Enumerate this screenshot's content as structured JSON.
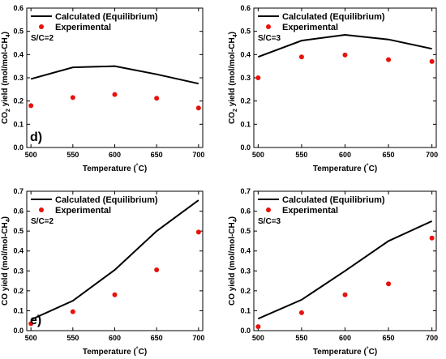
{
  "chart_data": [
    {
      "type": "line",
      "panel_letter": "d)",
      "annotation": "S/C=2",
      "xlabel": "Temperature (°C)",
      "ylabel": "CO2 yield (mol/mol-CH4)",
      "xlim": [
        495,
        705
      ],
      "ylim": [
        0,
        0.6
      ],
      "xticks": [
        "500",
        "550",
        "600",
        "650",
        "700"
      ],
      "yticks": [
        "0.0",
        "0.1",
        "0.2",
        "0.3",
        "0.4",
        "0.5",
        "0.6"
      ],
      "x": [
        500,
        550,
        600,
        650,
        700
      ],
      "series": [
        {
          "name": "Calculated (Equilibrium)",
          "style": "line",
          "color": "#000000",
          "values": [
            0.295,
            0.345,
            0.35,
            0.315,
            0.275
          ]
        },
        {
          "name": "Experimental",
          "style": "dot",
          "color": "#e8120c",
          "values": [
            0.18,
            0.215,
            0.228,
            0.212,
            0.17
          ]
        }
      ],
      "legend_position": "top-left"
    },
    {
      "type": "line",
      "panel_letter": "",
      "annotation": "S/C=3",
      "xlabel": "Temperature (°C)",
      "ylabel": "CO2 yield (mol/mol-CH4)",
      "xlim": [
        495,
        705
      ],
      "ylim": [
        0,
        0.6
      ],
      "xticks": [
        "500",
        "550",
        "600",
        "650",
        "700"
      ],
      "yticks": [
        "0.0",
        "0.1",
        "0.2",
        "0.3",
        "0.4",
        "0.5",
        "0.6"
      ],
      "x": [
        500,
        550,
        600,
        650,
        700
      ],
      "series": [
        {
          "name": "Calculated (Equilibrium)",
          "style": "line",
          "color": "#000000",
          "values": [
            0.39,
            0.46,
            0.485,
            0.465,
            0.425
          ]
        },
        {
          "name": "Experimental",
          "style": "dot",
          "color": "#e8120c",
          "values": [
            0.3,
            0.39,
            0.398,
            0.378,
            0.37
          ]
        }
      ],
      "legend_position": "top-left"
    },
    {
      "type": "line",
      "panel_letter": "e)",
      "annotation": "S/C=2",
      "xlabel": "Temperature (°C)",
      "ylabel": "CO yield (mol/mol-CH4)",
      "xlim": [
        495,
        705
      ],
      "ylim": [
        0,
        0.7
      ],
      "xticks": [
        "500",
        "550",
        "600",
        "650",
        "700"
      ],
      "yticks": [
        "0.0",
        "0.1",
        "0.2",
        "0.3",
        "0.4",
        "0.5",
        "0.6",
        "0.7"
      ],
      "x": [
        500,
        550,
        600,
        650,
        700
      ],
      "series": [
        {
          "name": "Calculated (Equilibrium)",
          "style": "line",
          "color": "#000000",
          "values": [
            0.055,
            0.15,
            0.305,
            0.5,
            0.655
          ]
        },
        {
          "name": "Experimental",
          "style": "dot",
          "color": "#e8120c",
          "values": [
            0.035,
            0.095,
            0.18,
            0.305,
            0.495
          ]
        }
      ],
      "legend_position": "top-left"
    },
    {
      "type": "line",
      "panel_letter": "",
      "annotation": "S/C=3",
      "xlabel": "Temperature (°C)",
      "ylabel": "CO yield (mol/mol-CH4)",
      "xlim": [
        495,
        705
      ],
      "ylim": [
        0,
        0.7
      ],
      "xticks": [
        "500",
        "550",
        "600",
        "650",
        "700"
      ],
      "yticks": [
        "0.0",
        "0.1",
        "0.2",
        "0.3",
        "0.4",
        "0.5",
        "0.6",
        "0.7"
      ],
      "x": [
        500,
        550,
        600,
        650,
        700
      ],
      "series": [
        {
          "name": "Calculated (Equilibrium)",
          "style": "line",
          "color": "#000000",
          "values": [
            0.06,
            0.155,
            0.3,
            0.45,
            0.55
          ]
        },
        {
          "name": "Experimental",
          "style": "dot",
          "color": "#e8120c",
          "values": [
            0.02,
            0.09,
            0.18,
            0.235,
            0.465
          ]
        }
      ],
      "legend_position": "top-left"
    }
  ]
}
